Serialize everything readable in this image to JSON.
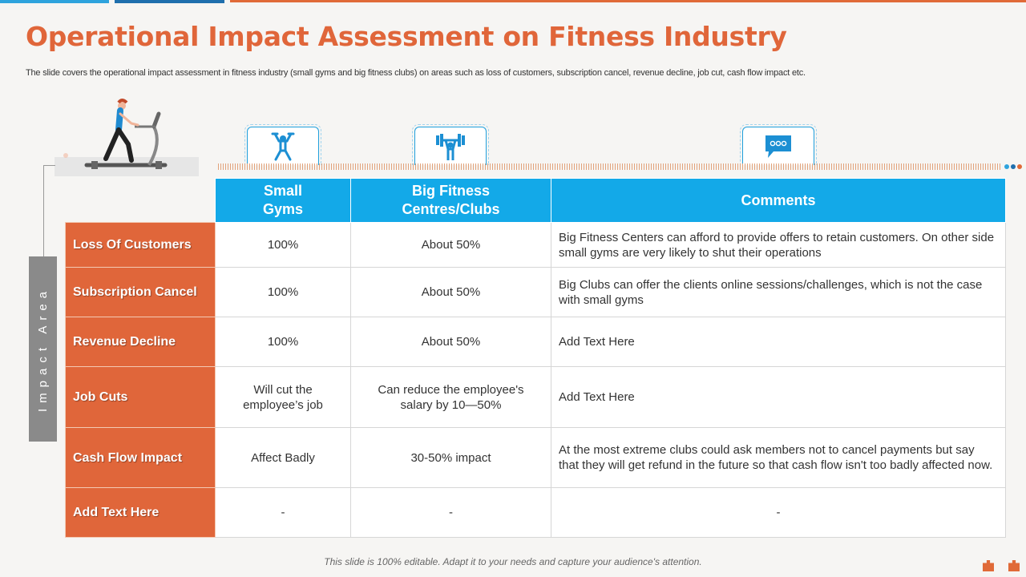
{
  "title": "Operational Impact Assessment on Fitness Industry",
  "subtitle": "The slide covers the operational impact assessment in fitness industry (small gyms and big fitness clubs) on areas such as loss of customers, subscription cancel, revenue decline, job cut, cash flow impact etc.",
  "side_label": "Impact Area",
  "icons": [
    "weightlifter-icon",
    "barbell-person-icon",
    "chat-bubble-icon"
  ],
  "colors": {
    "accent": "#e0663a",
    "header_blue": "#13a9e8",
    "side_gray": "#8a8a8a"
  },
  "table": {
    "headers": [
      "Small Gyms",
      "Big Fitness Centres/Clubs",
      "Comments"
    ],
    "rows": [
      {
        "area": "Loss Of Customers",
        "small": "100%",
        "big": "About 50%",
        "comment": "Big Fitness Centers can afford to provide offers to retain customers. On other side small gyms are very likely to shut their operations"
      },
      {
        "area": "Subscription Cancel",
        "small": "100%",
        "big": "About 50%",
        "comment": "Big Clubs can offer the clients online sessions/challenges, which is not the case with small gyms"
      },
      {
        "area": "Revenue Decline",
        "small": "100%",
        "big": "About 50%",
        "comment": "Add Text Here"
      },
      {
        "area": "Job Cuts",
        "small": "Will cut the employee’s job",
        "big": "Can reduce the employee's salary by 10—50%",
        "comment": "Add Text Here"
      },
      {
        "area": "Cash Flow Impact",
        "small": "Affect Badly",
        "big": "30-50% impact",
        "comment": "At the most extreme clubs could ask members not to cancel payments but say that they will get refund in the future so that cash flow isn't too badly affected now."
      },
      {
        "area": "Add Text Here",
        "small": "-",
        "big": "-",
        "comment": "-"
      }
    ]
  },
  "footnote": "This slide is 100% editable. Adapt it to your needs and capture your audience's attention."
}
